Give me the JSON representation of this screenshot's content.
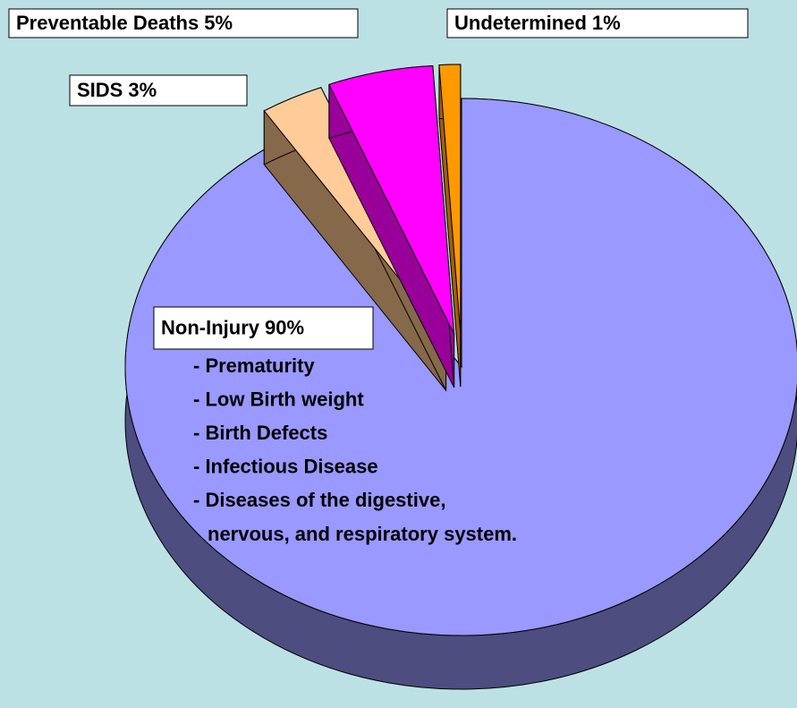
{
  "chart_data": {
    "type": "pie",
    "categories": [
      "Non-Injury",
      "SIDS",
      "Preventable Deaths",
      "Undetermined"
    ],
    "values": [
      90,
      3,
      5,
      1
    ],
    "value_labels": [
      "90%",
      "3%",
      "5%",
      "1%"
    ],
    "colors": [
      "#9999ff",
      "#ffcc99",
      "#ff00ff",
      "#ff9900"
    ],
    "side_colors": [
      "#4d4d80",
      "#86684a",
      "#990099",
      "#a35f00"
    ],
    "annotations": [
      "- Prematurity",
      "- Low Birth weight",
      "- Birth Defects",
      "- Infectious Disease",
      "- Diseases of the digestive,",
      "nervous, and respiratory system."
    ]
  }
}
